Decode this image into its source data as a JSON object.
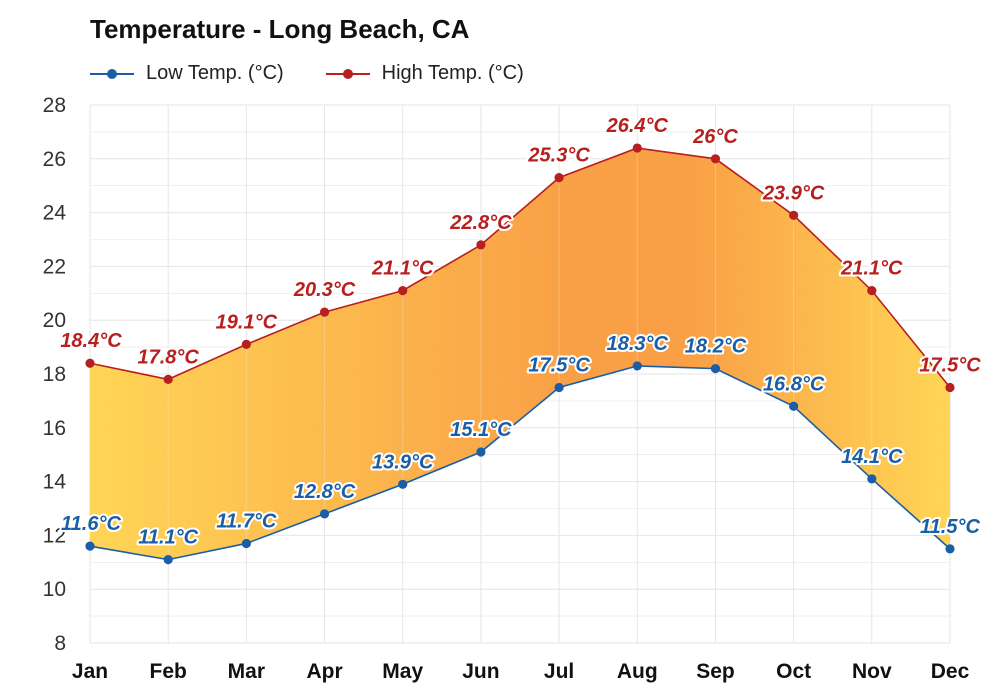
{
  "page": {
    "title": "Temperature - Long Beach, CA"
  },
  "legend": {
    "low_label": "Low Temp. (°C)",
    "high_label": "High Temp. (°C)"
  },
  "colors": {
    "low": "#1a5ea8",
    "high": "#b81f1f",
    "fill_cool": "#ffd34d",
    "fill_warm": "#f99b3c",
    "grid": "#e6e6e6"
  },
  "chart_data": {
    "type": "line",
    "title": "Temperature - Long Beach, CA",
    "categories": [
      "Jan",
      "Feb",
      "Mar",
      "Apr",
      "May",
      "Jun",
      "Jul",
      "Aug",
      "Sep",
      "Oct",
      "Nov",
      "Dec"
    ],
    "series": [
      {
        "name": "Low Temp. (°C)",
        "values": [
          11.6,
          11.1,
          11.7,
          12.8,
          13.9,
          15.1,
          17.5,
          18.3,
          18.2,
          16.8,
          14.1,
          11.5
        ],
        "labels": [
          "11.6°C",
          "11.1°C",
          "11.7°C",
          "12.8°C",
          "13.9°C",
          "15.1°C",
          "17.5°C",
          "18.3°C",
          "18.2°C",
          "16.8°C",
          "14.1°C",
          "11.5°C"
        ]
      },
      {
        "name": "High Temp. (°C)",
        "values": [
          18.4,
          17.8,
          19.1,
          20.3,
          21.1,
          22.8,
          25.3,
          26.4,
          26.0,
          23.9,
          21.1,
          17.5
        ],
        "labels": [
          "18.4°C",
          "17.8°C",
          "19.1°C",
          "20.3°C",
          "21.1°C",
          "22.8°C",
          "25.3°C",
          "26.4°C",
          "26°C",
          "23.9°C",
          "21.1°C",
          "17.5°C"
        ]
      }
    ],
    "ylim": [
      8,
      28
    ],
    "yticks": [
      8,
      10,
      12,
      14,
      16,
      18,
      20,
      22,
      24,
      26,
      28
    ],
    "grid": true,
    "legend_position": "top-left",
    "area_between_series": true
  }
}
